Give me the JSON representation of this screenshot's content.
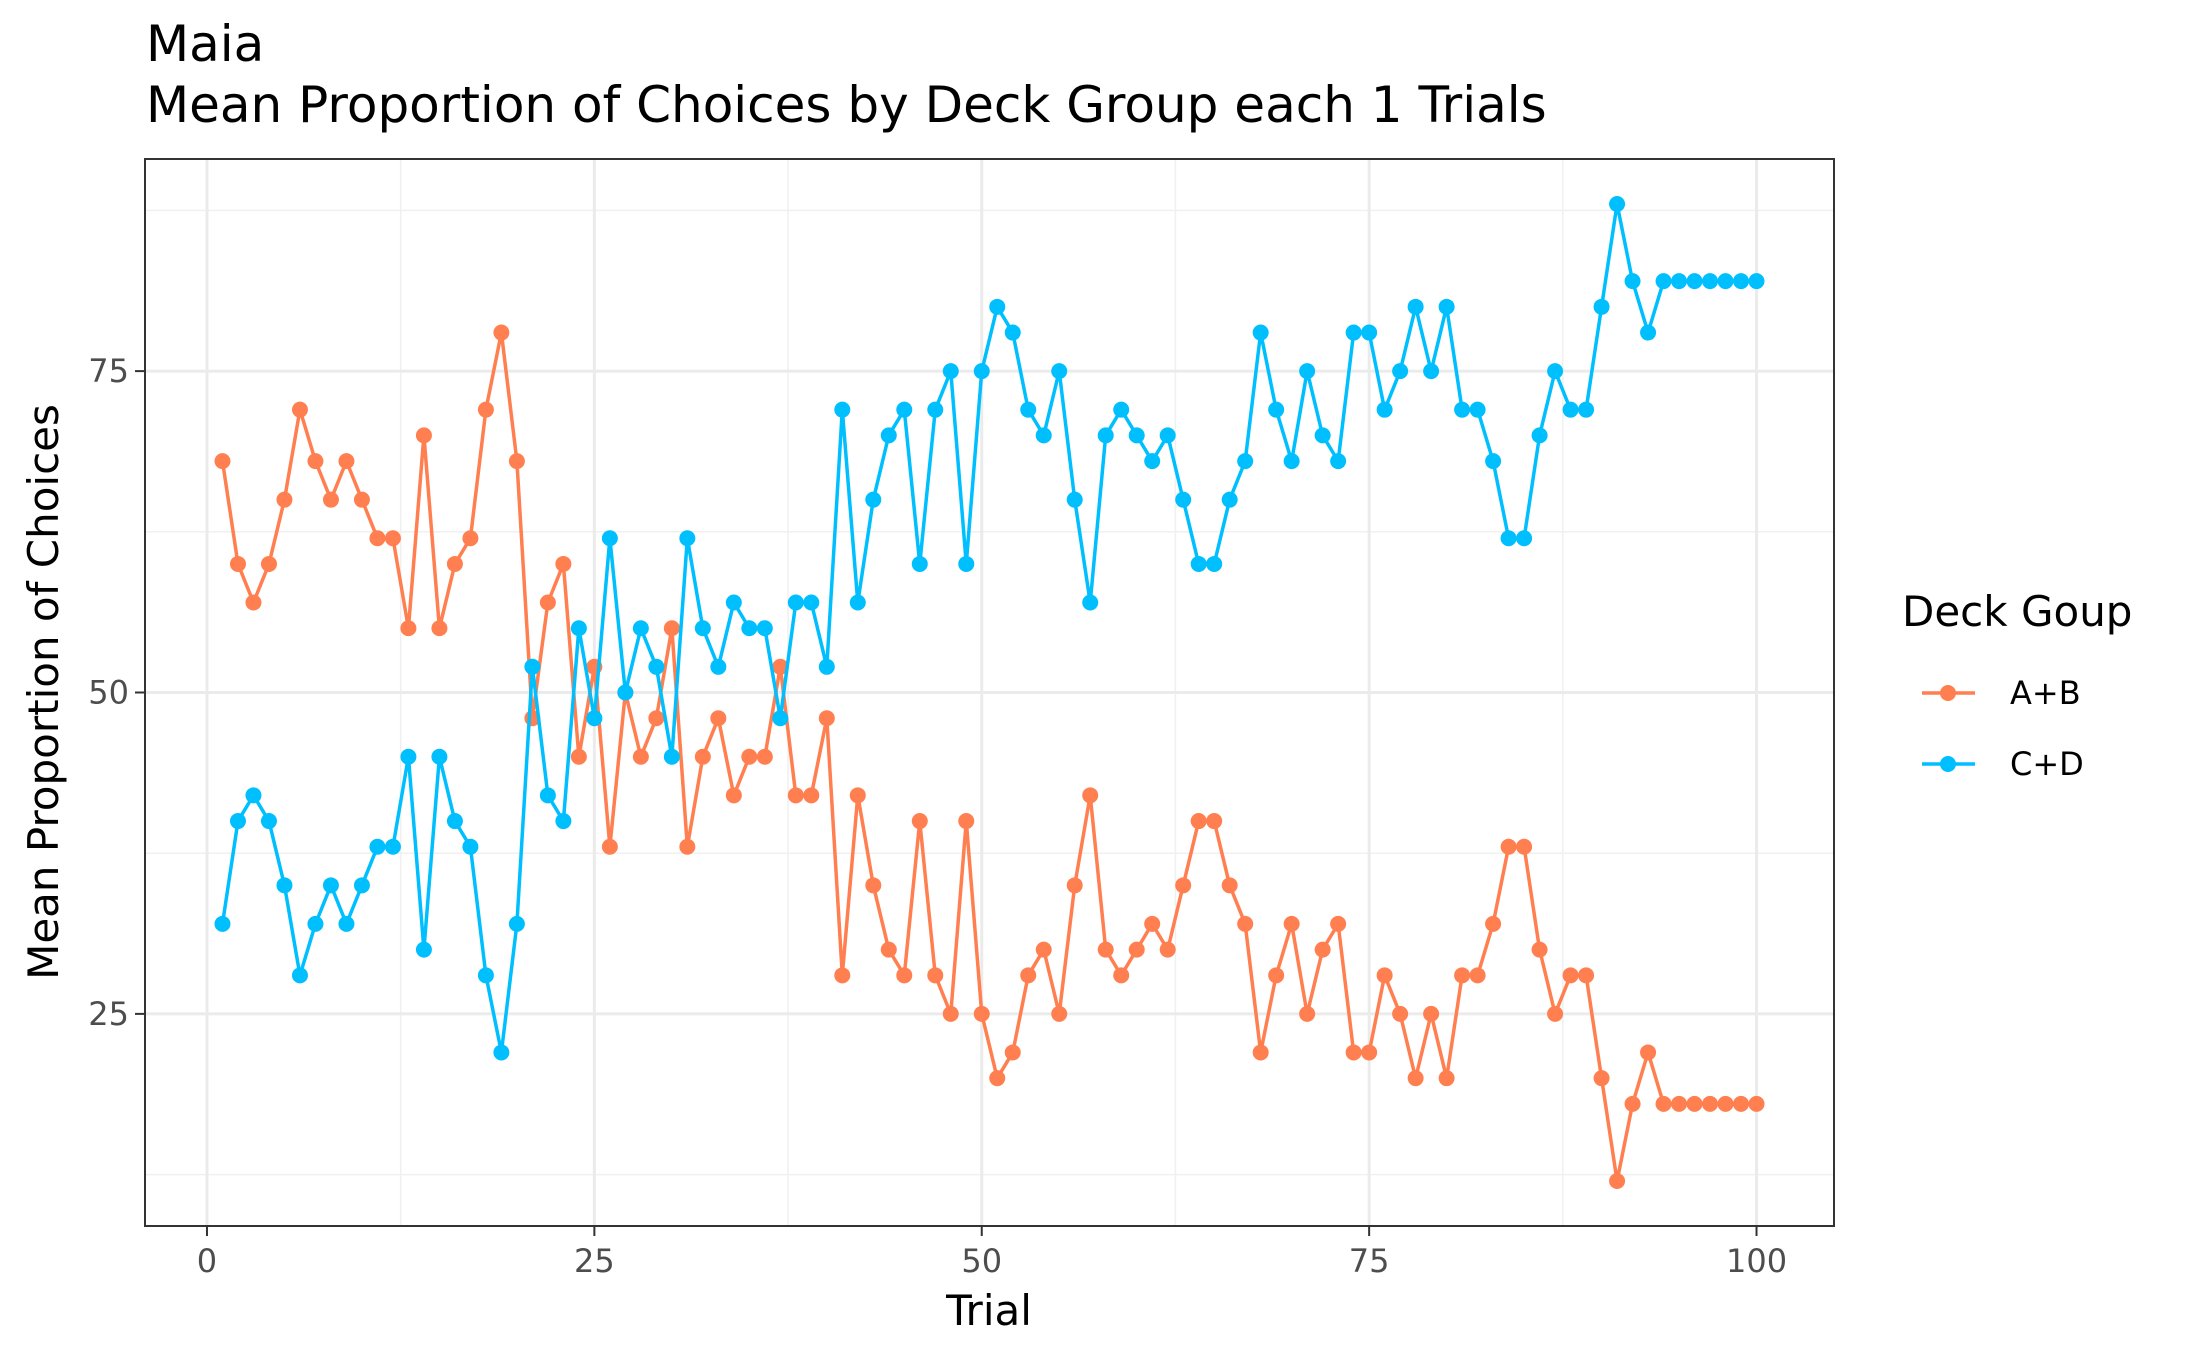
{
  "chart_data": {
    "type": "line",
    "title": "Maia",
    "subtitle": "Mean Proportion of Choices by Deck Group each 1 Trials",
    "xlabel": "Trial",
    "ylabel": "Mean Proportion of Choices",
    "xlim": [
      -4,
      105
    ],
    "ylim": [
      8.5,
      91.5
    ],
    "x_ticks": [
      0,
      25,
      50,
      75,
      100
    ],
    "x_tick_labels": [
      "0",
      "25",
      "50",
      "75",
      "100"
    ],
    "y_ticks": [
      25,
      50,
      75
    ],
    "y_tick_labels": [
      "25",
      "50",
      "75"
    ],
    "x_minor": [
      12.5,
      37.5,
      62.5,
      87.5
    ],
    "y_minor": [
      12.5,
      37.5,
      62.5,
      87.5
    ],
    "grid": true,
    "legend_title": "Deck Goup",
    "legend_position": "right",
    "x": [
      1,
      2,
      3,
      4,
      5,
      6,
      7,
      8,
      9,
      10,
      11,
      12,
      13,
      14,
      15,
      16,
      17,
      18,
      19,
      20,
      21,
      22,
      23,
      24,
      25,
      26,
      27,
      28,
      29,
      30,
      31,
      32,
      33,
      34,
      35,
      36,
      37,
      38,
      39,
      40,
      41,
      42,
      43,
      44,
      45,
      46,
      47,
      48,
      49,
      50,
      51,
      52,
      53,
      54,
      55,
      56,
      57,
      58,
      59,
      60,
      61,
      62,
      63,
      64,
      65,
      66,
      67,
      68,
      69,
      70,
      71,
      72,
      73,
      74,
      75,
      76,
      77,
      78,
      79,
      80,
      81,
      82,
      83,
      84,
      85,
      86,
      87,
      88,
      89,
      90,
      91,
      92,
      93,
      94,
      95,
      96,
      97,
      98,
      99,
      100
    ],
    "series": [
      {
        "name": "A+B",
        "color": "#FF7F50",
        "values": [
          68,
          60,
          57,
          60,
          65,
          72,
          68,
          65,
          68,
          65,
          62,
          62,
          55,
          70,
          55,
          60,
          62,
          72,
          78,
          68,
          48,
          57,
          60,
          45,
          52,
          38,
          50,
          45,
          48,
          55,
          38,
          45,
          48,
          42,
          45,
          45,
          52,
          42,
          42,
          48,
          28,
          42,
          35,
          30,
          28,
          40,
          28,
          25,
          40,
          25,
          20,
          22,
          28,
          30,
          25,
          35,
          42,
          30,
          28,
          30,
          32,
          30,
          35,
          40,
          40,
          35,
          32,
          22,
          28,
          32,
          25,
          30,
          32,
          22,
          22,
          28,
          25,
          20,
          25,
          20,
          28,
          28,
          32,
          38,
          38,
          30,
          25,
          28,
          28,
          20,
          12,
          18,
          22,
          18,
          18,
          18,
          18,
          18,
          18,
          18
        ]
      },
      {
        "name": "C+D",
        "color": "#00BFFF",
        "values": [
          32,
          40,
          42,
          40,
          35,
          28,
          32,
          35,
          32,
          35,
          38,
          38,
          45,
          30,
          45,
          40,
          38,
          28,
          22,
          32,
          52,
          42,
          40,
          55,
          48,
          62,
          50,
          55,
          52,
          45,
          62,
          55,
          52,
          57,
          55,
          55,
          48,
          57,
          57,
          52,
          72,
          57,
          65,
          70,
          72,
          60,
          72,
          75,
          60,
          75,
          80,
          78,
          72,
          70,
          75,
          65,
          57,
          70,
          72,
          70,
          68,
          70,
          65,
          60,
          60,
          65,
          68,
          78,
          72,
          68,
          75,
          70,
          68,
          78,
          78,
          72,
          75,
          80,
          75,
          80,
          72,
          72,
          68,
          62,
          62,
          70,
          75,
          72,
          72,
          80,
          88,
          82,
          78,
          82,
          82,
          82,
          82,
          82,
          82,
          82
        ]
      }
    ]
  }
}
